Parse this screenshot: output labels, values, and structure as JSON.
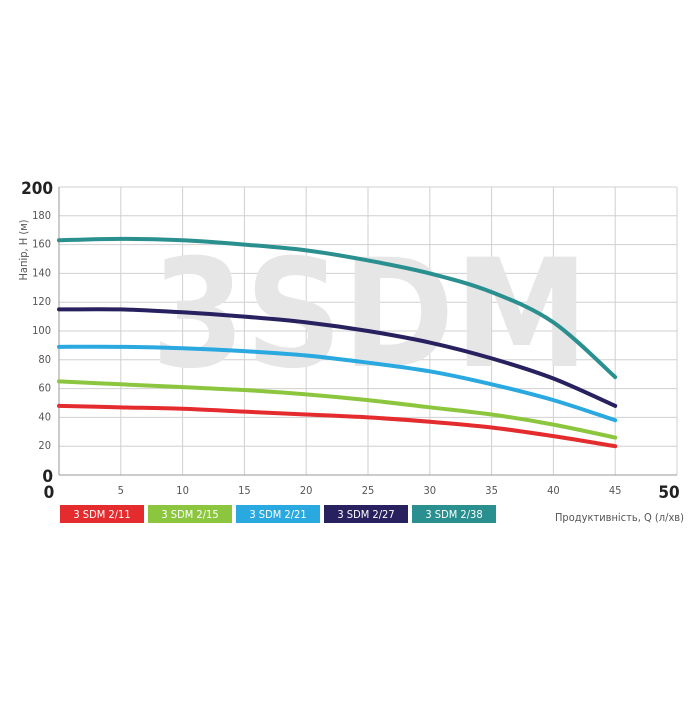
{
  "chart_data": {
    "type": "line",
    "watermark": "3SDM",
    "y_label": "Напір, H (м)",
    "x_label": "Продуктивність, Q (л/хв)",
    "x": [
      0,
      5,
      10,
      15,
      20,
      25,
      30,
      35,
      40,
      45
    ],
    "series": [
      {
        "name": "3 SDM 2/11",
        "color": "#e42b2d",
        "values": [
          48,
          47,
          46,
          44,
          42,
          40,
          37,
          33,
          27,
          20
        ]
      },
      {
        "name": "3 SDM 2/15",
        "color": "#8cc63e",
        "values": [
          65,
          63,
          61,
          59,
          56,
          52,
          47,
          42,
          35,
          26
        ]
      },
      {
        "name": "3 SDM 2/21",
        "color": "#2aa8e0",
        "values": [
          89,
          89,
          88,
          86,
          83,
          78,
          72,
          63,
          52,
          38
        ]
      },
      {
        "name": "3 SDM 2/27",
        "color": "#27215f",
        "values": [
          115,
          115,
          113,
          110,
          106,
          100,
          92,
          81,
          67,
          48
        ]
      },
      {
        "name": "3 SDM 2/38",
        "color": "#2a8f8f",
        "values": [
          163,
          164,
          163,
          160,
          156,
          149,
          140,
          127,
          106,
          68
        ]
      }
    ],
    "xlim": [
      0,
      50
    ],
    "ylim": [
      0,
      200
    ],
    "xticks": [
      0,
      5,
      10,
      15,
      20,
      25,
      30,
      35,
      40,
      45,
      50
    ],
    "yticks": [
      0,
      20,
      40,
      60,
      80,
      100,
      120,
      140,
      160,
      180,
      200
    ],
    "grid": true
  }
}
